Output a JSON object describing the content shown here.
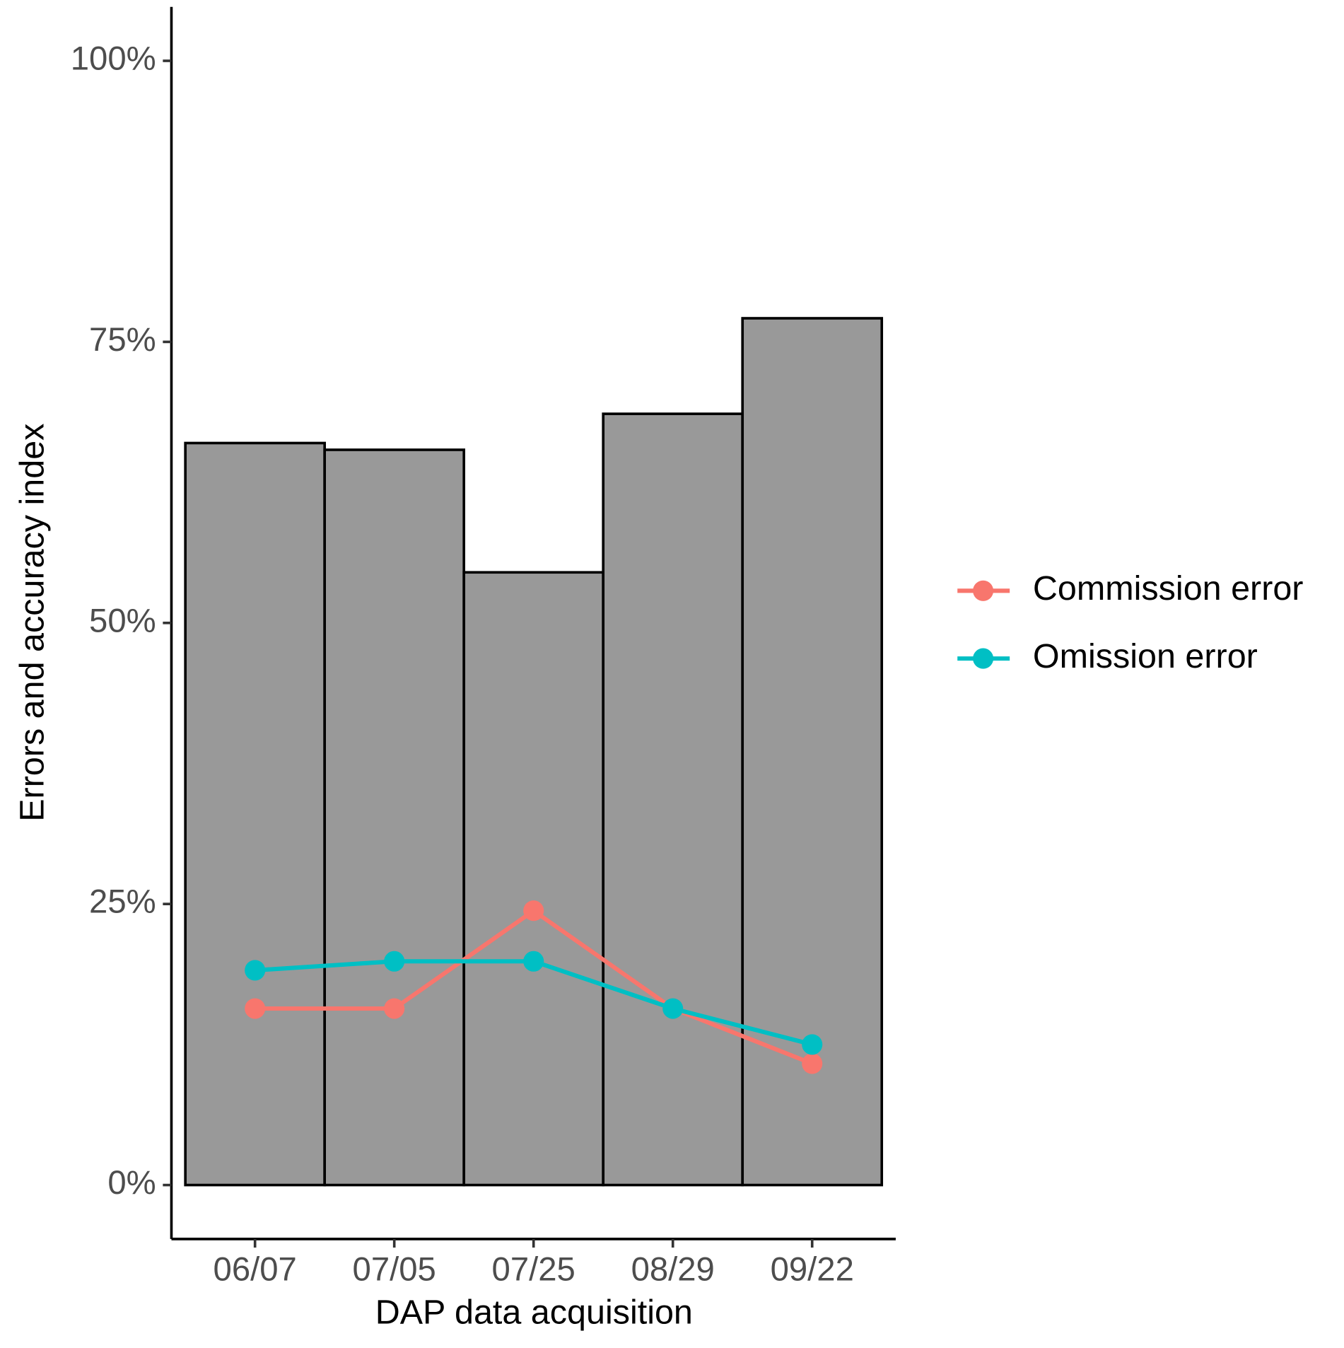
{
  "chart_data": {
    "type": "bar",
    "x_label": "DAP data acquisition",
    "y_label": "Errors and accuracy index",
    "categories": [
      "06/07",
      "07/05",
      "07/25",
      "08/29",
      "09/22"
    ],
    "values": [
      66.0,
      65.4,
      54.5,
      68.6,
      77.1
    ],
    "color": "#999999",
    "series": [
      {
        "name": "Commission error",
        "type": "line",
        "color": "#f8766d",
        "values": [
          15.7,
          15.7,
          24.4,
          15.7,
          10.8
        ]
      },
      {
        "name": "Omission error",
        "type": "line",
        "color": "#00bfc4",
        "values": [
          19.1,
          19.9,
          19.9,
          15.7,
          12.5
        ]
      }
    ],
    "ylim": [
      -4.8,
      104.8
    ],
    "yticks": [
      {
        "value": 0,
        "label": "0%"
      },
      {
        "value": 25,
        "label": "25%"
      },
      {
        "value": 50,
        "label": "50%"
      },
      {
        "value": 75,
        "label": "75%"
      },
      {
        "value": 100,
        "label": "100%"
      }
    ],
    "legend": "right"
  }
}
